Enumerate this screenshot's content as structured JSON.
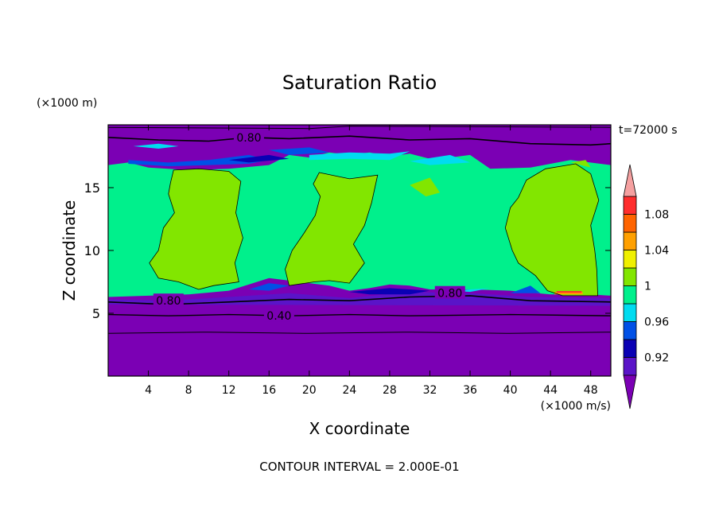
{
  "chart_data": {
    "type": "heatmap",
    "title": "Saturation Ratio",
    "xlabel": "X coordinate",
    "ylabel": "Z coordinate",
    "x_units": "(×1000 m/s)",
    "y_units": "(×1000 m)",
    "time_label": "t=72000 s",
    "footer": "CONTOUR INTERVAL = 2.000E-01",
    "xlim": [
      0,
      50
    ],
    "ylim": [
      0,
      20
    ],
    "xticks": [
      4,
      8,
      12,
      16,
      20,
      24,
      28,
      32,
      36,
      40,
      44,
      48
    ],
    "yticks": [
      5,
      10,
      15
    ],
    "colorbar": {
      "levels": [
        0.9,
        0.92,
        0.94,
        0.96,
        0.98,
        1.0,
        1.02,
        1.04,
        1.06,
        1.08,
        1.1
      ],
      "tick_labels": [
        "1.08",
        "1.04",
        "1",
        "0.96",
        "0.92"
      ],
      "colors": {
        "below": "#7b00b4",
        "b090": "#5a14c8",
        "b092": "#0a00b4",
        "b094": "#0050e6",
        "b096": "#00dcf0",
        "b098": "#00f08c",
        "b100": "#82e600",
        "b102": "#f0f000",
        "b104": "#ffa000",
        "b106": "#ff6400",
        "b108": "#ff2d2d",
        "above": "#f5a0a0"
      }
    },
    "regions": [
      {
        "name": "lower troposphere",
        "z_range": [
          0,
          6.2
        ],
        "value_band": "below 0.90"
      },
      {
        "name": "upper troposphere",
        "z_range": [
          16.8,
          20
        ],
        "value_band": "below 0.90"
      },
      {
        "name": "cloud layer",
        "z_range": [
          6.2,
          16.8
        ],
        "value_band": "0.98-1.00"
      },
      {
        "name": "updraft column 1",
        "x_range": [
          4,
          12
        ],
        "z_range": [
          7.0,
          16.4
        ],
        "value_band": "1.00-1.02"
      },
      {
        "name": "updraft column 2",
        "x_range": [
          16,
          25
        ],
        "z_range": [
          7.0,
          16.0
        ],
        "value_band": "1.00-1.02"
      },
      {
        "name": "updraft column 3",
        "x_range": [
          38,
          48
        ],
        "z_range": [
          6.5,
          16.8
        ],
        "value_band": "1.00-1.02"
      }
    ],
    "contours": [
      {
        "label": "0.80",
        "x": 14,
        "z": 19.0
      },
      {
        "label": "0.80",
        "x": 6,
        "z": 6.0
      },
      {
        "label": "0.80",
        "x": 34,
        "z": 6.6
      },
      {
        "label": "0.40",
        "x": 17,
        "z": 4.8
      }
    ]
  }
}
